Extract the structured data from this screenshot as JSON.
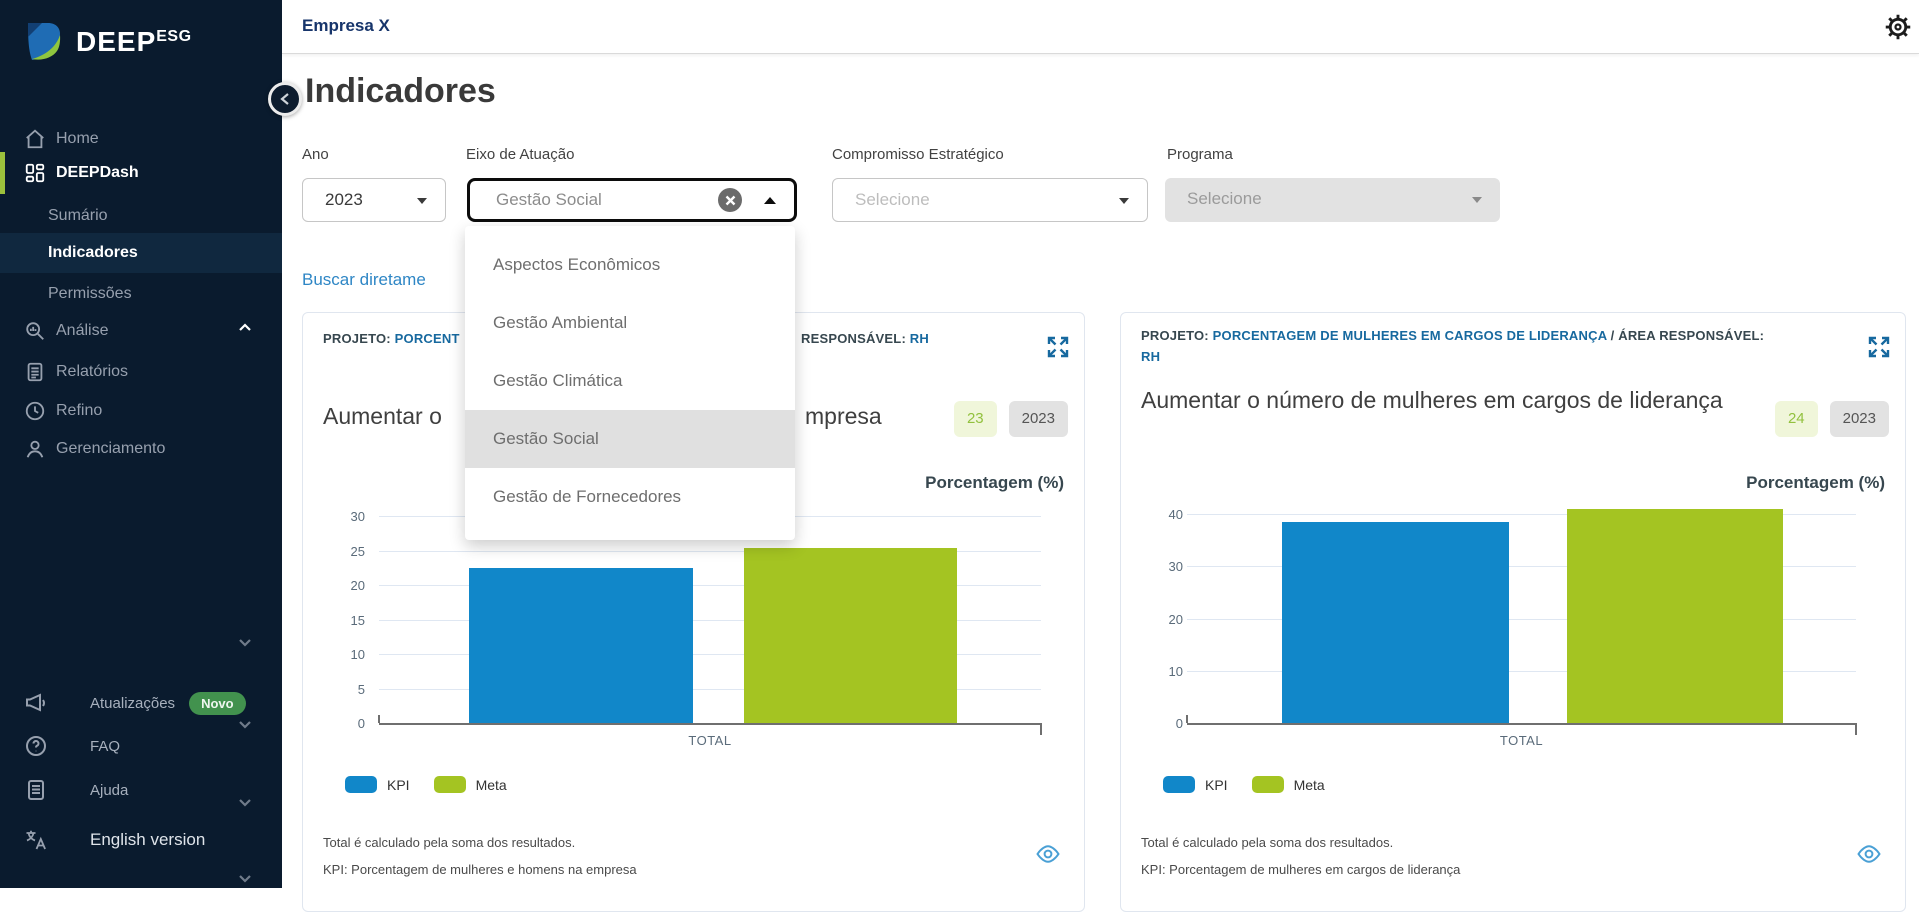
{
  "topbar": {
    "company": "Empresa X"
  },
  "sidebar": {
    "brand": {
      "name": "DEEP",
      "suffix": "ESG"
    },
    "items": [
      {
        "label": "Home"
      },
      {
        "label": "DEEPDash",
        "expanded": true
      },
      {
        "label": "Sumário"
      },
      {
        "label": "Indicadores",
        "active": true
      },
      {
        "label": "Permissões"
      },
      {
        "label": "Análise"
      },
      {
        "label": "Relatórios"
      },
      {
        "label": "Refino"
      },
      {
        "label": "Gerenciamento"
      }
    ],
    "footer_items": [
      {
        "label": "Atualizações",
        "badge": "Novo"
      },
      {
        "label": "FAQ"
      },
      {
        "label": "Ajuda"
      },
      {
        "label": "English version"
      }
    ]
  },
  "page": {
    "title": "Indicadores"
  },
  "filters": {
    "ano": {
      "label": "Ano",
      "value": "2023"
    },
    "eixo": {
      "label": "Eixo de Atuação",
      "value": "Gestão Social"
    },
    "compromisso": {
      "label": "Compromisso Estratégico",
      "placeholder": "Selecione"
    },
    "programa": {
      "label": "Programa",
      "placeholder": "Selecione",
      "disabled": true
    }
  },
  "eixo_dropdown": {
    "options": [
      "Aspectos Econômicos",
      "Gestão Ambiental",
      "Gestão Climática",
      "Gestão Social",
      "Gestão de Fornecedores"
    ],
    "highlighted": "Gestão Social"
  },
  "search_link": {
    "visible_text": "Buscar diretame"
  },
  "cards": [
    {
      "header": {
        "projeto_label": "PROJETO:",
        "projeto_value_visible": "PORCENT",
        "responsavel_label_visible": "RESPONSÁVEL:",
        "responsavel_value": "RH"
      },
      "title_visible_left": "Aumentar o",
      "title_visible_right": "mpresa",
      "badges": {
        "count": "23",
        "year": "2023"
      },
      "axis_title": "Porcentagem (%)",
      "footnotes": [
        "Total é calculado pela soma dos resultados.",
        "KPI: Porcentagem de mulheres e homens na empresa"
      ]
    },
    {
      "header": {
        "projeto_label": "PROJETO:",
        "projeto_value": "PORCENTAGEM DE MULHERES EM CARGOS DE LIDERANÇA",
        "area_label": "/ ÁREA RESPONSÁVEL:",
        "responsavel_value": "RH"
      },
      "title": "Aumentar o número de mulheres em cargos de liderança",
      "badges": {
        "count": "24",
        "year": "2023"
      },
      "axis_title": "Porcentagem (%)",
      "footnotes": [
        "Total é calculado pela soma dos resultados.",
        "KPI: Porcentagem de mulheres em cargos de liderança"
      ]
    }
  ],
  "chart_data": [
    {
      "type": "bar",
      "categories": [
        "TOTAL"
      ],
      "series": [
        {
          "name": "KPI",
          "values": [
            22.5
          ],
          "color": "#1187c9"
        },
        {
          "name": "Meta",
          "values": [
            25.4
          ],
          "color": "#a4c422"
        }
      ],
      "ylabel": "Porcentagem (%)",
      "ylim": [
        0,
        33
      ],
      "yticks": [
        0,
        5,
        10,
        15,
        20,
        25,
        30
      ],
      "grid": true,
      "legend_position": "bottom"
    },
    {
      "type": "bar",
      "categories": [
        "TOTAL"
      ],
      "series": [
        {
          "name": "KPI",
          "values": [
            38.5
          ],
          "color": "#1187c9"
        },
        {
          "name": "Meta",
          "values": [
            41
          ],
          "color": "#a4c422"
        }
      ],
      "ylabel": "Porcentagem (%)",
      "ylim": [
        0,
        44
      ],
      "yticks": [
        0,
        10,
        20,
        30,
        40
      ],
      "grid": true,
      "legend_position": "bottom"
    }
  ],
  "colors": {
    "accent_green": "#9cc13c",
    "kpi_blue": "#1187c9",
    "meta_green": "#a4c422",
    "link_blue": "#2e86c5",
    "projeto_blue": "#17699f",
    "sidebar_bg": "#0a1b2e"
  }
}
